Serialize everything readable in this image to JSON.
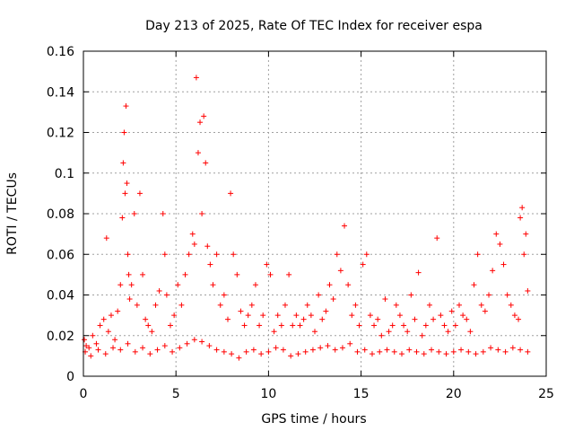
{
  "chart_data": {
    "type": "scatter",
    "title": "Day 213 of 2025, Rate Of TEC Index for receiver espa",
    "xlabel": "GPS time / hours",
    "ylabel": "ROTI / TECUs",
    "xlim": [
      0,
      25
    ],
    "ylim": [
      0,
      0.16
    ],
    "x_ticks": [
      "0",
      "5",
      "10",
      "15",
      "20",
      "25"
    ],
    "y_ticks": [
      "0",
      "0.02",
      "0.04",
      "0.06",
      "0.08",
      "0.1",
      "0.12",
      "0.14",
      "0.16"
    ],
    "grid": true,
    "legend": "none",
    "marker": "plus",
    "color": "#ff0000",
    "series": [
      {
        "x": [
          0.05,
          0.15,
          0.3,
          0.5,
          0.7,
          0.9,
          1.1,
          1.25,
          1.35,
          1.5,
          1.7,
          1.85,
          2.0,
          2.1,
          2.15,
          2.2,
          2.25,
          2.3,
          2.35,
          2.4,
          2.45,
          2.5,
          2.6,
          2.75,
          2.9,
          3.05,
          3.2,
          3.35,
          3.5,
          3.7,
          3.9,
          4.1,
          4.3,
          4.4,
          4.5,
          4.7,
          4.9,
          5.1,
          5.3,
          5.5,
          5.7,
          5.9,
          6.0,
          6.1,
          6.2,
          6.3,
          6.4,
          6.5,
          6.6,
          6.7,
          6.85,
          7.0,
          7.2,
          7.4,
          7.6,
          7.8,
          7.95,
          8.1,
          8.3,
          8.5,
          8.7,
          8.9,
          9.1,
          9.3,
          9.5,
          9.7,
          9.9,
          10.1,
          10.3,
          10.5,
          10.7,
          10.9,
          11.1,
          11.3,
          11.5,
          11.7,
          11.9,
          12.1,
          12.3,
          12.5,
          12.7,
          12.9,
          13.1,
          13.3,
          13.5,
          13.7,
          13.9,
          14.1,
          14.3,
          14.5,
          14.7,
          14.9,
          15.1,
          15.3,
          15.5,
          15.7,
          15.9,
          16.1,
          16.3,
          16.5,
          16.7,
          16.9,
          17.1,
          17.3,
          17.5,
          17.7,
          17.9,
          18.1,
          18.3,
          18.5,
          18.7,
          18.9,
          19.1,
          19.3,
          19.5,
          19.7,
          19.9,
          20.1,
          20.3,
          20.5,
          20.7,
          20.9,
          21.1,
          21.3,
          21.5,
          21.7,
          21.9,
          22.1,
          22.3,
          22.5,
          22.7,
          22.9,
          23.1,
          23.3,
          23.5,
          23.6,
          23.7,
          23.8,
          23.9,
          24.0
        ],
        "y": [
          0.018,
          0.015,
          0.014,
          0.02,
          0.016,
          0.025,
          0.028,
          0.068,
          0.022,
          0.03,
          0.018,
          0.032,
          0.045,
          0.078,
          0.105,
          0.12,
          0.09,
          0.133,
          0.095,
          0.06,
          0.05,
          0.038,
          0.045,
          0.08,
          0.035,
          0.09,
          0.05,
          0.028,
          0.025,
          0.022,
          0.035,
          0.042,
          0.08,
          0.06,
          0.04,
          0.025,
          0.03,
          0.045,
          0.035,
          0.05,
          0.06,
          0.07,
          0.065,
          0.147,
          0.11,
          0.125,
          0.08,
          0.128,
          0.105,
          0.064,
          0.055,
          0.045,
          0.06,
          0.035,
          0.04,
          0.028,
          0.09,
          0.06,
          0.05,
          0.032,
          0.025,
          0.03,
          0.035,
          0.045,
          0.025,
          0.03,
          0.055,
          0.05,
          0.022,
          0.03,
          0.025,
          0.035,
          0.05,
          0.025,
          0.03,
          0.025,
          0.028,
          0.035,
          0.03,
          0.022,
          0.04,
          0.028,
          0.032,
          0.045,
          0.038,
          0.06,
          0.052,
          0.074,
          0.045,
          0.03,
          0.035,
          0.025,
          0.055,
          0.06,
          0.03,
          0.025,
          0.028,
          0.02,
          0.038,
          0.022,
          0.025,
          0.035,
          0.03,
          0.025,
          0.022,
          0.04,
          0.028,
          0.051,
          0.02,
          0.025,
          0.035,
          0.028,
          0.068,
          0.03,
          0.025,
          0.022,
          0.032,
          0.025,
          0.035,
          0.03,
          0.028,
          0.022,
          0.045,
          0.06,
          0.035,
          0.032,
          0.04,
          0.052,
          0.07,
          0.065,
          0.055,
          0.04,
          0.035,
          0.03,
          0.028,
          0.078,
          0.083,
          0.06,
          0.07,
          0.042
        ]
      },
      {
        "x": [
          0.1,
          0.4,
          0.8,
          1.2,
          1.6,
          2.0,
          2.4,
          2.8,
          3.2,
          3.6,
          4.0,
          4.4,
          4.8,
          5.2,
          5.6,
          6.0,
          6.4,
          6.8,
          7.2,
          7.6,
          8.0,
          8.4,
          8.8,
          9.2,
          9.6,
          10.0,
          10.4,
          10.8,
          11.2,
          11.6,
          12.0,
          12.4,
          12.8,
          13.2,
          13.6,
          14.0,
          14.4,
          14.8,
          15.2,
          15.6,
          16.0,
          16.4,
          16.8,
          17.2,
          17.6,
          18.0,
          18.4,
          18.8,
          19.2,
          19.6,
          20.0,
          20.4,
          20.8,
          21.2,
          21.6,
          22.0,
          22.4,
          22.8,
          23.2,
          23.6,
          24.0
        ],
        "y": [
          0.012,
          0.01,
          0.013,
          0.011,
          0.014,
          0.013,
          0.016,
          0.012,
          0.014,
          0.011,
          0.013,
          0.015,
          0.012,
          0.014,
          0.016,
          0.018,
          0.017,
          0.015,
          0.013,
          0.012,
          0.011,
          0.009,
          0.012,
          0.013,
          0.011,
          0.012,
          0.014,
          0.013,
          0.01,
          0.011,
          0.012,
          0.013,
          0.014,
          0.015,
          0.013,
          0.014,
          0.016,
          0.012,
          0.013,
          0.011,
          0.012,
          0.013,
          0.012,
          0.011,
          0.013,
          0.012,
          0.011,
          0.013,
          0.012,
          0.011,
          0.012,
          0.013,
          0.012,
          0.011,
          0.012,
          0.014,
          0.013,
          0.012,
          0.014,
          0.013,
          0.012
        ]
      }
    ]
  }
}
